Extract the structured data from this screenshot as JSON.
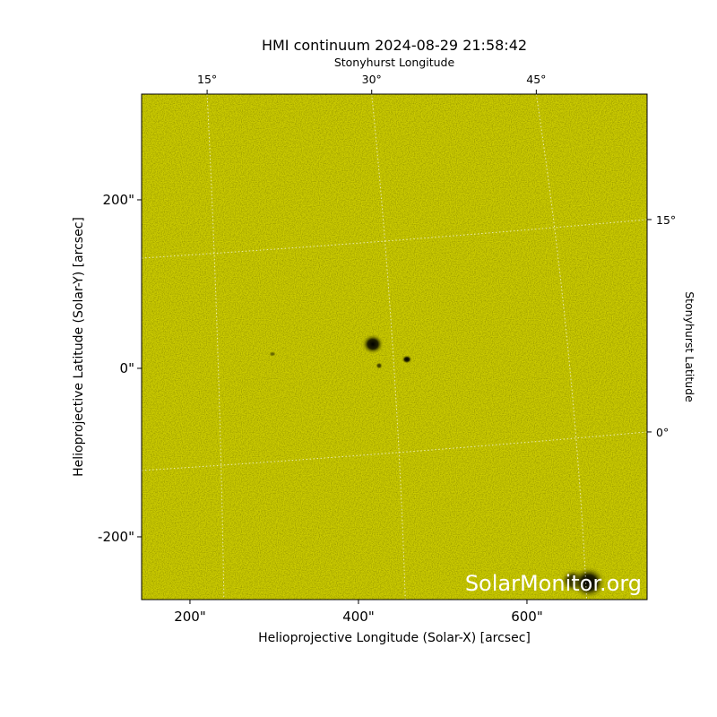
{
  "chart_data": {
    "type": "image",
    "title": "HMI continuum 2024-08-29 21:58:42",
    "xlabel": "Helioprojective Longitude (Solar-X) [arcsec]",
    "ylabel": "Helioprojective Latitude (Solar-Y) [arcsec]",
    "x2label": "Stonyhurst Longitude",
    "y2label": "Stonyhurst Latitude",
    "color": "#cccc00",
    "grid": true,
    "xlim": [
      142.6,
      742.6
    ],
    "ylim": [
      -274.5,
      325.5
    ],
    "xticks": [
      {
        "value": 200,
        "label": "200\""
      },
      {
        "value": 400,
        "label": "400\""
      },
      {
        "value": 600,
        "label": "600\""
      }
    ],
    "yticks": [
      {
        "value": -200,
        "label": "-200\""
      },
      {
        "value": 0,
        "label": "0\""
      },
      {
        "value": 200,
        "label": "200\""
      }
    ],
    "x2lim": [
      9.03,
      55.1
    ],
    "x2ticks": [
      {
        "value": 15,
        "label": "15°"
      },
      {
        "value": 30,
        "label": "30°"
      },
      {
        "value": 45,
        "label": "45°"
      }
    ],
    "y2lim": [
      -11.84,
      23.86
    ],
    "y2ticks": [
      {
        "value": 0,
        "label": "0°"
      },
      {
        "value": 15,
        "label": "15°"
      }
    ],
    "watermark": "SolarMonitor.org"
  }
}
